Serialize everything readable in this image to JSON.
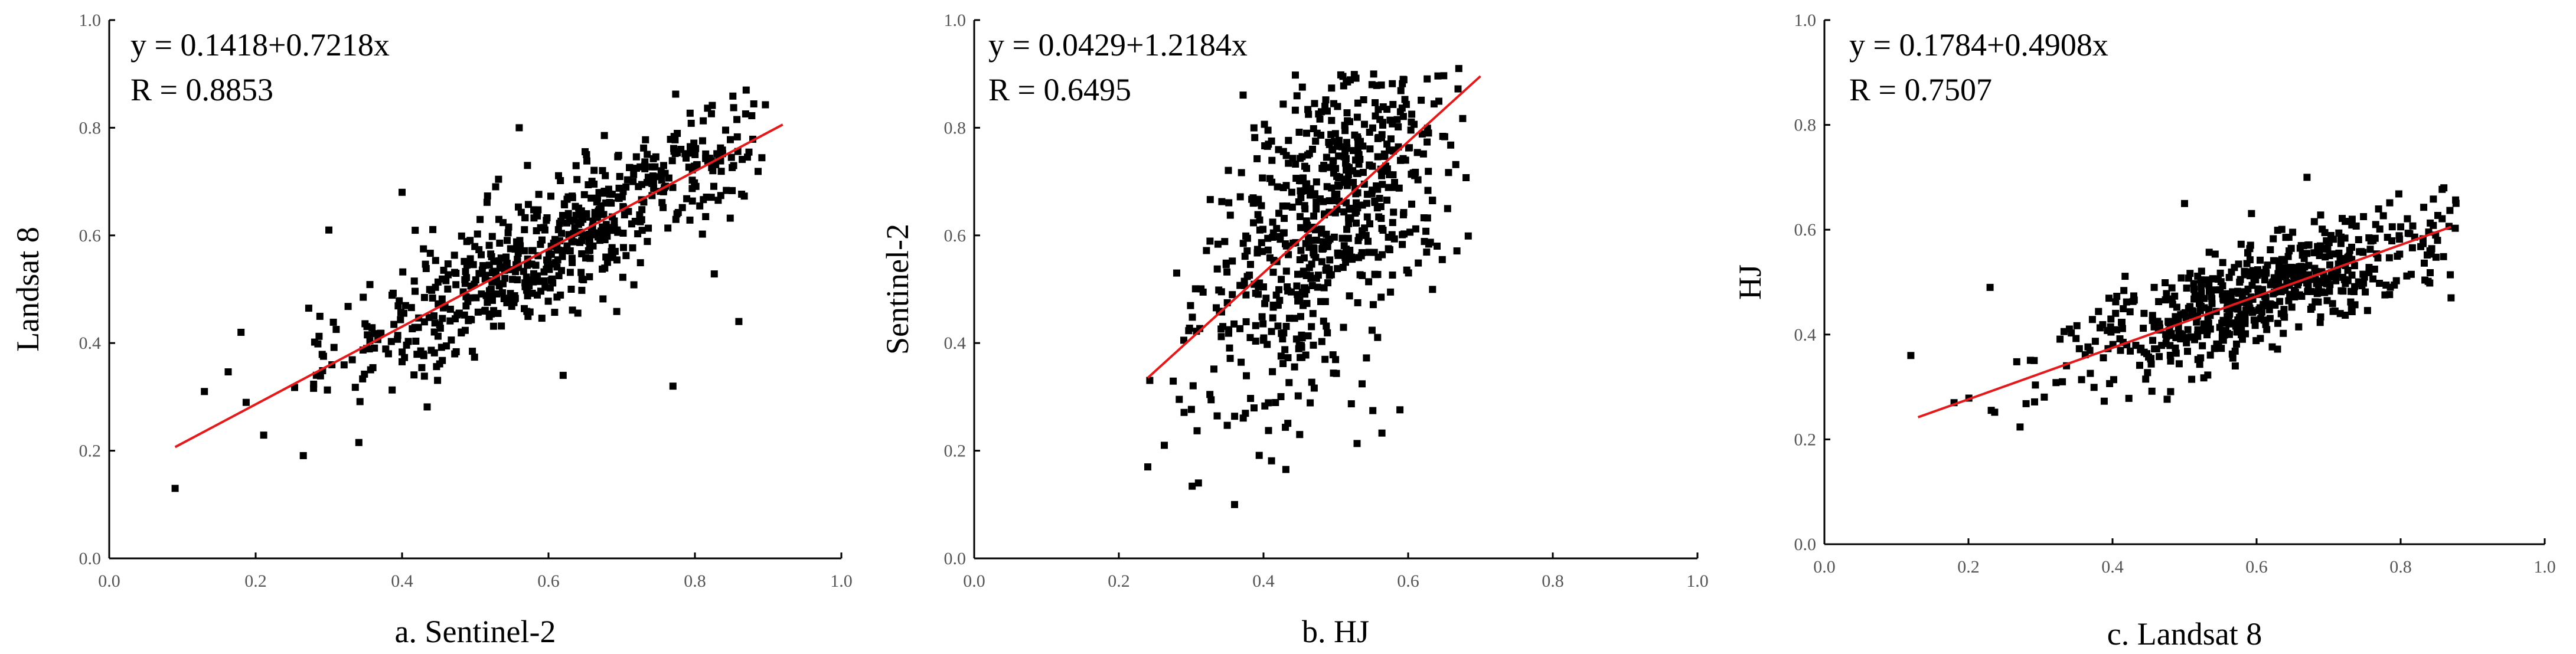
{
  "colors": {
    "points": "#000000",
    "fit_line": "#e31a1c",
    "axes": "#000000"
  },
  "chart_data": [
    {
      "type": "scatter",
      "xlabel": "a. Sentinel-2",
      "ylabel": "Landsat 8",
      "xlim": [
        0.0,
        1.0
      ],
      "ylim": [
        0.0,
        1.0
      ],
      "xticks": [
        "0.0",
        "0.2",
        "0.4",
        "0.6",
        "0.8",
        "1.0"
      ],
      "yticks": [
        "0.0",
        "0.2",
        "0.4",
        "0.6",
        "0.8",
        "1.0"
      ],
      "grid": false,
      "equation": "y = 0.1418+0.7218x",
      "r_text": "R = 0.8853",
      "fit": {
        "intercept": 0.1418,
        "slope": 0.7218,
        "x_range": [
          0.09,
          0.92
        ]
      },
      "point_cloud": {
        "count": 650,
        "center": [
          0.62,
          0.59
        ],
        "x_spread": 0.16,
        "noise": 0.06,
        "x_range": [
          0.1,
          0.9
        ],
        "y_range": [
          0.12,
          0.87
        ]
      },
      "points": [
        [
          0.09,
          0.13
        ],
        [
          0.77,
          0.32
        ],
        [
          0.56,
          0.8
        ],
        [
          0.87,
          0.87
        ],
        [
          0.3,
          0.61
        ],
        [
          0.4,
          0.68
        ],
        [
          0.18,
          0.42
        ],
        [
          0.13,
          0.31
        ],
        [
          0.62,
          0.34
        ],
        [
          0.86,
          0.44
        ]
      ]
    },
    {
      "type": "scatter",
      "xlabel": "b. HJ",
      "ylabel": "Sentinel-2",
      "xlim": [
        0.0,
        1.0
      ],
      "ylim": [
        0.0,
        1.0
      ],
      "xticks": [
        "0.0",
        "0.2",
        "0.4",
        "0.6",
        "0.8",
        "1.0"
      ],
      "yticks": [
        "0.0",
        "0.2",
        "0.4",
        "0.6",
        "0.8",
        "1.0"
      ],
      "grid": false,
      "equation": "y = 0.0429+1.2184x",
      "r_text": "R = 0.6495",
      "fit": {
        "intercept": 0.0429,
        "slope": 1.2184,
        "x_range": [
          0.24,
          0.7
        ]
      },
      "point_cloud": {
        "count": 650,
        "center": [
          0.49,
          0.64
        ],
        "x_spread": 0.09,
        "noise": 0.15,
        "x_range": [
          0.24,
          0.7
        ],
        "y_range": [
          0.1,
          0.9
        ]
      },
      "points": [
        [
          0.36,
          0.1
        ],
        [
          0.67,
          0.91
        ],
        [
          0.24,
          0.17
        ],
        [
          0.45,
          0.23
        ],
        [
          0.31,
          0.14
        ],
        [
          0.55,
          0.88
        ],
        [
          0.64,
          0.58
        ],
        [
          0.28,
          0.53
        ]
      ]
    },
    {
      "type": "scatter",
      "xlabel": "c. Landsat 8",
      "ylabel": "HJ",
      "xlim": [
        0.0,
        1.0
      ],
      "ylim": [
        0.0,
        1.0
      ],
      "xticks": [
        "0.0",
        "0.2",
        "0.4",
        "0.6",
        "0.8",
        "1.0"
      ],
      "yticks": [
        "0.0",
        "0.2",
        "0.4",
        "0.6",
        "0.8",
        "1.0"
      ],
      "grid": false,
      "equation": "y = 0.1784+0.4908x",
      "r_text": "R = 0.7507",
      "fit": {
        "intercept": 0.1784,
        "slope": 0.4908,
        "x_range": [
          0.13,
          0.87
        ]
      },
      "point_cloud": {
        "count": 650,
        "center": [
          0.6,
          0.47
        ],
        "x_spread": 0.14,
        "noise": 0.05,
        "x_range": [
          0.2,
          0.88
        ],
        "y_range": [
          0.22,
          0.7
        ]
      },
      "points": [
        [
          0.12,
          0.36
        ],
        [
          0.18,
          0.27
        ],
        [
          0.87,
          0.47
        ],
        [
          0.86,
          0.68
        ],
        [
          0.67,
          0.7
        ],
        [
          0.5,
          0.65
        ],
        [
          0.23,
          0.49
        ]
      ]
    }
  ]
}
